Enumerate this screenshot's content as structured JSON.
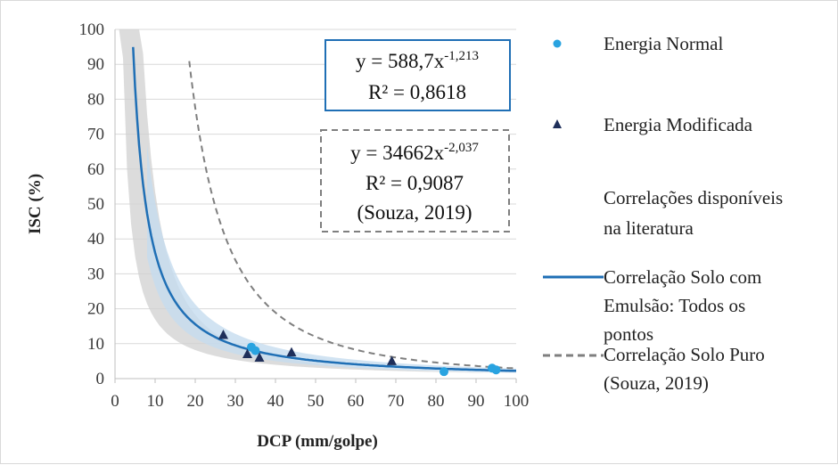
{
  "chart_data": {
    "type": "scatter",
    "xlabel": "DCP (mm/golpe)",
    "ylabel": "ISC (%)",
    "xlim": [
      0,
      100
    ],
    "ylim": [
      0,
      100
    ],
    "x_ticks": [
      "0",
      "10",
      "20",
      "30",
      "40",
      "50",
      "60",
      "70",
      "80",
      "90",
      "100"
    ],
    "y_ticks": [
      "0",
      "10",
      "20",
      "30",
      "40",
      "50",
      "60",
      "70",
      "80",
      "90",
      "100"
    ],
    "grid": "horizontal",
    "legend_position": "right",
    "series": [
      {
        "name": "Energia Normal",
        "kind": "points",
        "marker": "circle",
        "color": "#29a3e0",
        "points": [
          [
            34,
            9
          ],
          [
            35,
            8
          ],
          [
            82,
            2
          ],
          [
            94,
            3
          ],
          [
            95,
            2.5
          ]
        ]
      },
      {
        "name": "Energia Modificada",
        "kind": "points",
        "marker": "triangle",
        "color": "#1f2f5a",
        "points": [
          [
            27,
            12.5
          ],
          [
            33,
            7
          ],
          [
            36,
            6
          ],
          [
            44,
            7.5
          ],
          [
            69,
            5
          ]
        ]
      },
      {
        "name": "Correlações disponíveis na literatura",
        "kind": "band",
        "color": "#d0d0d0"
      },
      {
        "name": "Correlação Solo com Emulsão: Todos os pontos",
        "kind": "power",
        "coef": 588.7,
        "exp": -1.213,
        "x_range": [
          4,
          100
        ],
        "color": "#1f6fb5"
      },
      {
        "name": "Correlação Solo Puro (Souza, 2019)",
        "kind": "power",
        "coef": 34662,
        "exp": -2.037,
        "x_range": [
          18.5,
          100
        ],
        "color": "#7f7f7f",
        "dashed": true
      }
    ],
    "annotations": {
      "eq1_prefix": "y = 588,7x",
      "eq1_exp": "-1,213",
      "eq1_r2": "R² = 0,8618",
      "eq2_prefix": "y = 34662x",
      "eq2_exp": "-2,037",
      "eq2_r2": "R² = 0,9087",
      "eq2_source": "(Souza, 2019)"
    },
    "legend": {
      "energia_normal": "Energia Normal",
      "energia_modificada": "Energia Modificada",
      "literatura_line1": "Correlações disponíveis",
      "literatura_line2": "na literatura",
      "emulsao_line1": "Correlação Solo com",
      "emulsao_line2": "Emulsão: Todos os",
      "emulsao_line3": "pontos",
      "puro_line1": "Correlação Solo Puro",
      "puro_line2": "(Souza, 2019)"
    },
    "colors": {
      "band": "#d0d0d0",
      "band_blue": "#c6dcef",
      "grid": "#d9d9d9",
      "eq1_border": "#1f6fb5",
      "eq2_border": "#7f7f7f"
    }
  }
}
